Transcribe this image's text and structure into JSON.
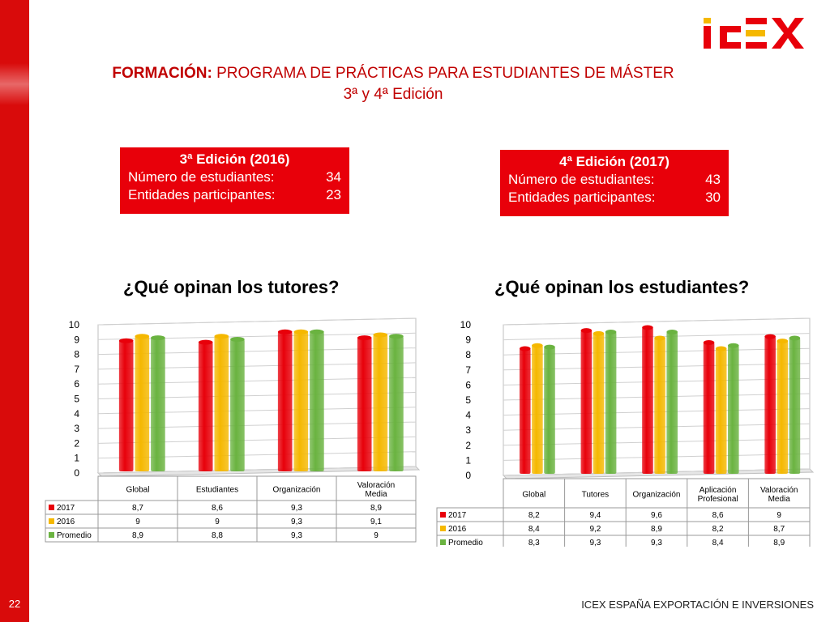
{
  "slide": {
    "page_number": "22",
    "footer": "ICEX ESPAÑA EXPORTACIÓN E INVERSIONES",
    "logo_text": "ICEX",
    "title_bold": "FORMACIÓN:",
    "title_rest": " PROGRAMA DE PRÁCTICAS PARA ESTUDIANTES DE MÁSTER",
    "subtitle": "3ª y 4ª Edición",
    "colors": {
      "brand_red": "#d90b0b",
      "series_2017": "#e8000a",
      "series_2016": "#f5b800",
      "series_promedio": "#6ab340"
    }
  },
  "edition3": {
    "heading": "3ª Edición (2016)",
    "students_label": "Número de estudiantes:",
    "students_value": "34",
    "entities_label": "Entidades participantes:",
    "entities_value": "23"
  },
  "edition4": {
    "heading": "4ª Edición (2017)",
    "students_label": "Número de estudiantes:",
    "students_value": "43",
    "entities_label": "Entidades participantes:",
    "entities_value": "30"
  },
  "chart_data": [
    {
      "type": "bar",
      "title": "¿Qué opinan los tutores?",
      "ylim": [
        0,
        10
      ],
      "yticks": [
        "0",
        "1",
        "2",
        "3",
        "4",
        "5",
        "6",
        "7",
        "8",
        "9",
        "10"
      ],
      "categories": [
        "Global",
        "Estudiantes",
        "Organización",
        "Valoración\nMedia"
      ],
      "series": [
        {
          "name": "2017",
          "values": [
            8.7,
            8.6,
            9.3,
            8.9
          ],
          "labels": [
            "8,7",
            "8,6",
            "9,3",
            "8,9"
          ]
        },
        {
          "name": "2016",
          "values": [
            9,
            9,
            9.3,
            9.1
          ],
          "labels": [
            "9",
            "9",
            "9,3",
            "9,1"
          ]
        },
        {
          "name": "Promedio",
          "values": [
            8.9,
            8.8,
            9.3,
            9
          ],
          "labels": [
            "8,9",
            "8,8",
            "9,3",
            "9"
          ]
        }
      ],
      "grid": true,
      "legend": "data-table"
    },
    {
      "type": "bar",
      "title": "¿Qué opinan los estudiantes?",
      "ylim": [
        0,
        10
      ],
      "yticks": [
        "0",
        "1",
        "2",
        "3",
        "4",
        "5",
        "6",
        "7",
        "8",
        "9",
        "10"
      ],
      "categories": [
        "Global",
        "Tutores",
        "Organización",
        "Aplicación\nProfesional",
        "Valoración\nMedia"
      ],
      "series": [
        {
          "name": "2017",
          "values": [
            8.2,
            9.4,
            9.6,
            8.6,
            9
          ],
          "labels": [
            "8,2",
            "9,4",
            "9,6",
            "8,6",
            "9"
          ]
        },
        {
          "name": "2016",
          "values": [
            8.4,
            9.2,
            8.9,
            8.2,
            8.7
          ],
          "labels": [
            "8,4",
            "9,2",
            "8,9",
            "8,2",
            "8,7"
          ]
        },
        {
          "name": "Promedio",
          "values": [
            8.3,
            9.3,
            9.3,
            8.4,
            8.9
          ],
          "labels": [
            "8,3",
            "9,3",
            "9,3",
            "8,4",
            "8,9"
          ]
        }
      ],
      "grid": true,
      "legend": "data-table"
    }
  ]
}
